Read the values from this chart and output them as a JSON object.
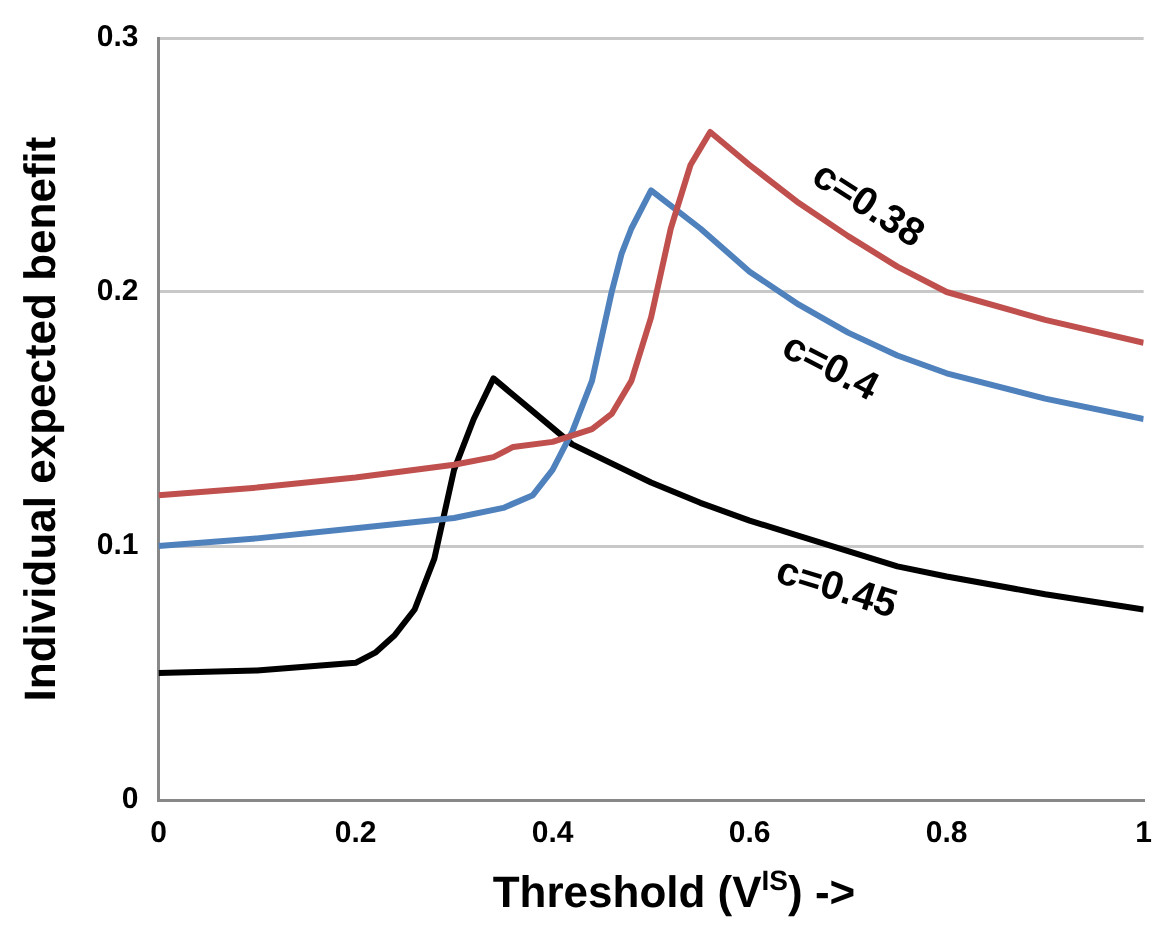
{
  "chart_data": {
    "type": "line",
    "xlabel": "Threshold (V$^{IS}$) ->",
    "ylabel": "Individual expected benefit",
    "xlim": [
      0,
      1
    ],
    "xticks": [
      0,
      0.2,
      0.4,
      0.6,
      0.8,
      1
    ],
    "ylim": [
      0,
      0.3
    ],
    "yticks": [
      0,
      0.1,
      0.2,
      0.3
    ],
    "grid": "y",
    "legend": false,
    "marker": "none",
    "line_style": "solid",
    "series": [
      {
        "name": "c=0.38",
        "color": "#c0504d",
        "x": [
          0,
          0.1,
          0.2,
          0.3,
          0.34,
          0.36,
          0.4,
          0.44,
          0.46,
          0.48,
          0.5,
          0.52,
          0.54,
          0.56,
          0.6,
          0.65,
          0.7,
          0.75,
          0.8,
          0.9,
          1
        ],
        "values": [
          0.12,
          0.123,
          0.127,
          0.132,
          0.135,
          0.139,
          0.141,
          0.146,
          0.152,
          0.165,
          0.19,
          0.225,
          0.25,
          0.263,
          0.25,
          0.235,
          0.222,
          0.21,
          0.2,
          0.189,
          0.18
        ]
      },
      {
        "name": "c=0.4",
        "color": "#4f81bd",
        "x": [
          0,
          0.1,
          0.2,
          0.3,
          0.35,
          0.38,
          0.4,
          0.42,
          0.44,
          0.46,
          0.47,
          0.48,
          0.5,
          0.55,
          0.6,
          0.65,
          0.7,
          0.75,
          0.8,
          0.9,
          1
        ],
        "values": [
          0.1,
          0.103,
          0.107,
          0.111,
          0.115,
          0.12,
          0.13,
          0.145,
          0.165,
          0.2,
          0.215,
          0.225,
          0.24,
          0.225,
          0.208,
          0.195,
          0.184,
          0.175,
          0.168,
          0.158,
          0.15
        ]
      },
      {
        "name": "c=0.45",
        "color": "#000000",
        "x": [
          0,
          0.1,
          0.2,
          0.22,
          0.24,
          0.26,
          0.28,
          0.3,
          0.32,
          0.34,
          0.38,
          0.42,
          0.5,
          0.55,
          0.6,
          0.65,
          0.7,
          0.75,
          0.8,
          0.9,
          1
        ],
        "values": [
          0.05,
          0.051,
          0.054,
          0.058,
          0.065,
          0.075,
          0.095,
          0.13,
          0.15,
          0.166,
          0.153,
          0.14,
          0.125,
          0.117,
          0.11,
          0.104,
          0.098,
          0.092,
          0.088,
          0.081,
          0.075
        ]
      }
    ]
  }
}
